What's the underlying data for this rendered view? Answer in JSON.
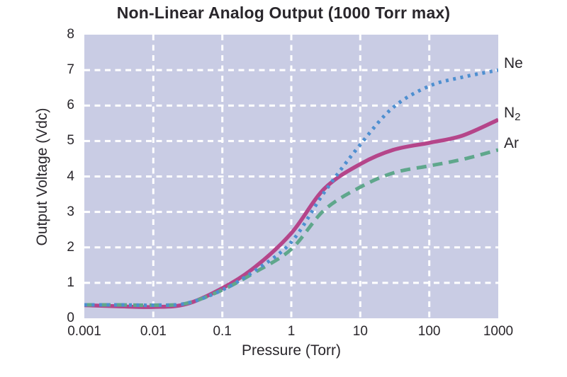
{
  "title": "Non-Linear Analog Output (1000 Torr max)",
  "colors": {
    "plot_background": "#c9cce4",
    "grid": "#ffffff",
    "text": "#29262b",
    "ne": "#4e8fd0",
    "n2": "#b5458a",
    "ar": "#5fa78c"
  },
  "chart_data": {
    "type": "line",
    "title": "Non-Linear Analog Output (1000 Torr max)",
    "xlabel": "Pressure (Torr)",
    "ylabel": "Output Voltage (Vdc)",
    "x_scale": "log",
    "xlim": [
      0.001,
      1000
    ],
    "ylim": [
      0,
      8
    ],
    "x_ticks": [
      "0.001",
      "0.01",
      "0.1",
      "1",
      "10",
      "100",
      "1000"
    ],
    "y_ticks": [
      "0",
      "1",
      "2",
      "3",
      "4",
      "5",
      "6",
      "7",
      "8"
    ],
    "grid": "on",
    "grid_style": "white dashed, interior lines only",
    "legend_position": "right of plot, at curve endpoints",
    "x": [
      0.001,
      0.003,
      0.01,
      0.03,
      0.1,
      0.3,
      1,
      3,
      10,
      30,
      100,
      300,
      1000
    ],
    "series": [
      {
        "id": "n2",
        "name": "N",
        "sub": "2",
        "style": "solid",
        "color": "#b5458a",
        "values": [
          0.37,
          0.34,
          0.32,
          0.4,
          0.85,
          1.45,
          2.4,
          3.65,
          4.35,
          4.75,
          4.95,
          5.15,
          5.6
        ]
      },
      {
        "id": "ar",
        "name": "Ar",
        "sub": "",
        "style": "dashed",
        "color": "#5fa78c",
        "values": [
          0.38,
          0.38,
          0.37,
          0.42,
          0.8,
          1.3,
          1.95,
          3.05,
          3.7,
          4.1,
          4.3,
          4.48,
          4.75
        ]
      },
      {
        "id": "ne",
        "name": "Ne",
        "sub": "",
        "style": "dotted",
        "color": "#4e8fd0",
        "values": [
          0.38,
          0.38,
          0.37,
          0.42,
          0.8,
          1.35,
          2.15,
          3.55,
          4.9,
          5.95,
          6.55,
          6.8,
          7.0
        ]
      }
    ]
  }
}
